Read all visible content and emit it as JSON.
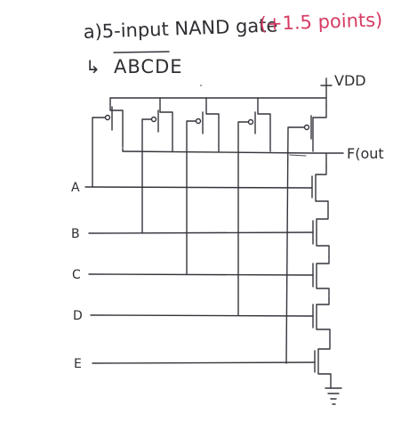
{
  "heading": {
    "title": "a)5-input NAND gate",
    "points": "(+1.5 points)",
    "expr_prefix": "↳",
    "expr": "ABCDE"
  },
  "labels": {
    "vdd": "VDD",
    "output": "F(out"
  },
  "inputs": [
    "A",
    "B",
    "C",
    "D",
    "E"
  ],
  "colors": {
    "ink": "#34353c",
    "accent": "#d63c63"
  }
}
